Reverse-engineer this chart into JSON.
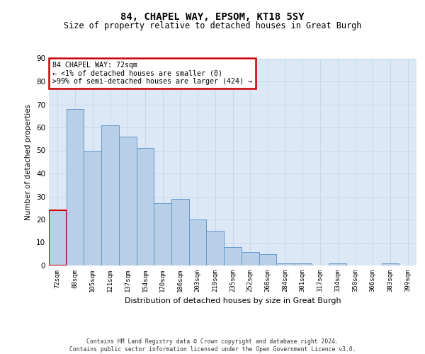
{
  "title1": "84, CHAPEL WAY, EPSOM, KT18 5SY",
  "title2": "Size of property relative to detached houses in Great Burgh",
  "xlabel": "Distribution of detached houses by size in Great Burgh",
  "ylabel": "Number of detached properties",
  "categories": [
    "72sqm",
    "88sqm",
    "105sqm",
    "121sqm",
    "137sqm",
    "154sqm",
    "170sqm",
    "186sqm",
    "203sqm",
    "219sqm",
    "235sqm",
    "252sqm",
    "268sqm",
    "284sqm",
    "301sqm",
    "317sqm",
    "334sqm",
    "350sqm",
    "366sqm",
    "383sqm",
    "399sqm"
  ],
  "values": [
    24,
    68,
    50,
    61,
    56,
    51,
    27,
    29,
    20,
    15,
    8,
    6,
    5,
    1,
    1,
    0,
    1,
    0,
    0,
    1,
    0
  ],
  "bar_color": "#b8cfe8",
  "bar_edge_color": "#6699cc",
  "highlight_bar_index": 0,
  "highlight_bar_edge_color": "#cc0000",
  "annotation_box_text": "84 CHAPEL WAY: 72sqm\n← <1% of detached houses are smaller (0)\n>99% of semi-detached houses are larger (424) →",
  "annotation_box_color": "#ffffff",
  "annotation_box_edge_color": "#cc0000",
  "grid_color": "#c8d8e8",
  "background_color": "#dce8f5",
  "footer_line1": "Contains HM Land Registry data © Crown copyright and database right 2024.",
  "footer_line2": "Contains public sector information licensed under the Open Government Licence v3.0.",
  "ylim": [
    0,
    90
  ],
  "yticks": [
    0,
    10,
    20,
    30,
    40,
    50,
    60,
    70,
    80,
    90
  ]
}
